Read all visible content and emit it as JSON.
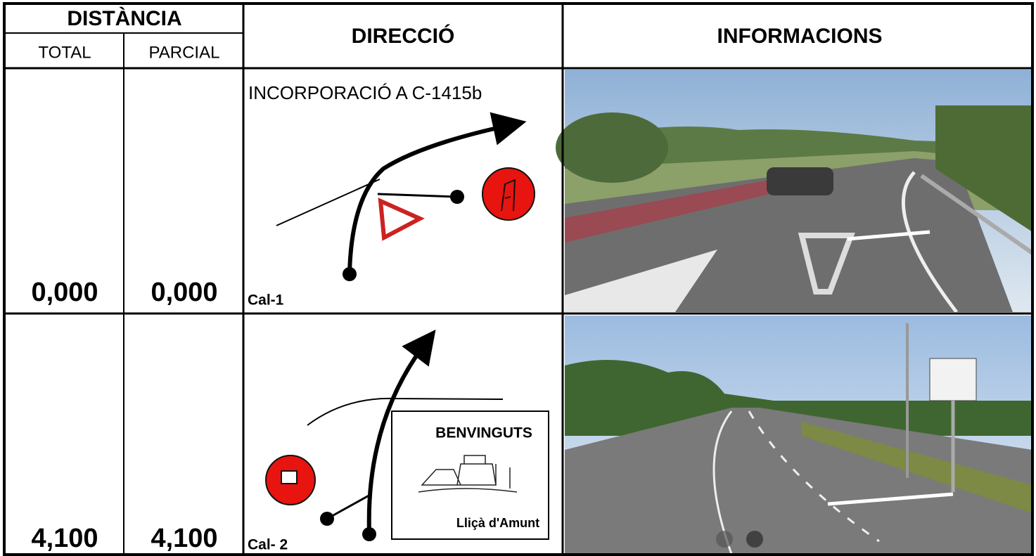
{
  "header": {
    "distance": "DISTÀNCIA",
    "total": "TOTAL",
    "partial": "PARCIAL",
    "direction": "DIRECCIÓ",
    "information": "INFORMACIONS"
  },
  "rows": [
    {
      "total": "0,000",
      "partial": "0,000",
      "instruction": "INCORPORACIÓ A C-1415b",
      "code": "Cal-1"
    },
    {
      "total": "4,100",
      "partial": "4,100",
      "code": "Cal- 2",
      "sign_title": "BENVINGUTS",
      "sign_place": "Lliçà d'Amunt"
    }
  ]
}
